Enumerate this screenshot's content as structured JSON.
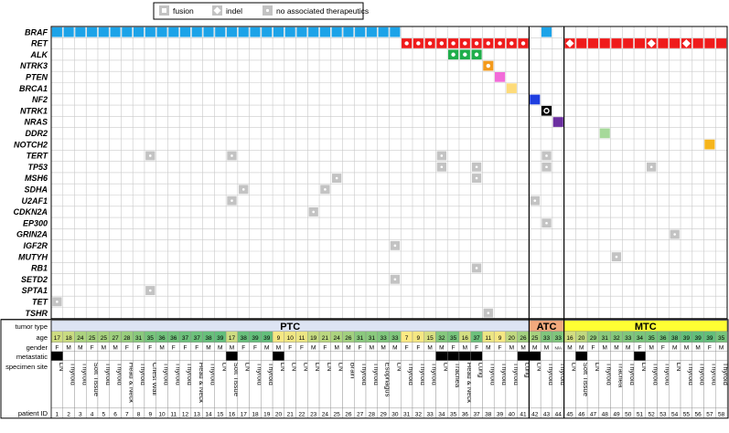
{
  "legend": {
    "items": [
      {
        "label": "fusion",
        "symbol": "square"
      },
      {
        "label": "indel",
        "symbol": "diamond"
      },
      {
        "label": "no associated therapeutics",
        "symbol": "gray-dot"
      }
    ]
  },
  "colors": {
    "BRAF": "#1ca3e8",
    "RET": "#ef1b1b",
    "ALK": "#1fae4b",
    "NTRK3": "#f39a1c",
    "PTEN": "#f26bd9",
    "BRCA1": "#fddb7a",
    "NF2": "#1f3fe0",
    "NRAS": "#6b2fa0",
    "DDR2": "#a6d99a",
    "NOTCH2": "#f6b51c",
    "gray": "#c3c3c3",
    "grid": "#c9c9c9",
    "PTC": "#dde4f3",
    "ATC": "#f2a97d",
    "MTC": "#ffff33"
  },
  "chart_data": {
    "type": "heatmap",
    "patient_ids": [
      1,
      2,
      3,
      4,
      5,
      6,
      7,
      8,
      9,
      10,
      11,
      12,
      13,
      14,
      15,
      16,
      17,
      18,
      19,
      20,
      21,
      22,
      23,
      24,
      25,
      26,
      27,
      28,
      29,
      30,
      31,
      32,
      33,
      34,
      35,
      36,
      37,
      38,
      39,
      40,
      41,
      42,
      43,
      44,
      45,
      46,
      47,
      48,
      49,
      50,
      51,
      52,
      53,
      54,
      55,
      56,
      57,
      58
    ],
    "genes": [
      "BRAF",
      "RET",
      "ALK",
      "NTRK3",
      "PTEN",
      "BRCA1",
      "NF2",
      "NTRK1",
      "NRAS",
      "DDR2",
      "NOTCH2",
      "TERT",
      "TP53",
      "MSH6",
      "SDHA",
      "U2AF1",
      "CDKN2A",
      "EP300",
      "GRIN2A",
      "IGF2R",
      "MUTYH",
      "RB1",
      "SETD2",
      "SPTA1",
      "TET",
      "TSHR"
    ],
    "tumor_type_label": "tumor type",
    "groups": [
      {
        "name": "PTC",
        "from": 1,
        "to": 41
      },
      {
        "name": "ATC",
        "from": 42,
        "to": 44
      },
      {
        "name": "MTC",
        "from": 45,
        "to": 58
      }
    ],
    "row_labels": {
      "age": "age",
      "gender": "gender",
      "metastatic": "metastatic",
      "site": "specimen site",
      "pid": "patient ID"
    },
    "age": [
      17,
      18,
      24,
      25,
      25,
      27,
      28,
      31,
      35,
      36,
      36,
      37,
      37,
      38,
      39,
      17,
      38,
      39,
      39,
      9,
      10,
      11,
      19,
      21,
      24,
      26,
      31,
      31,
      33,
      33,
      7,
      9,
      15,
      32,
      35,
      16,
      37,
      11,
      9,
      20,
      26,
      25,
      33,
      33,
      16,
      20,
      29,
      31,
      32,
      33,
      34,
      35,
      36,
      38,
      39,
      39,
      39,
      35
    ],
    "gender": [
      "F",
      "M",
      "M",
      "F",
      "M",
      "M",
      "F",
      "F",
      "F",
      "M",
      "F",
      "F",
      "F",
      "M",
      "M",
      "M",
      "F",
      "F",
      "M",
      "M",
      "F",
      "F",
      "M",
      "F",
      "M",
      "M",
      "F",
      "M",
      "M",
      "M",
      "F",
      "F",
      "M",
      "M",
      "F",
      "M",
      "F",
      "M",
      "F",
      "M",
      "M",
      "M",
      "M",
      "N/A",
      "M",
      "M",
      "F",
      "M",
      "M",
      "M",
      "F",
      "M",
      "F",
      "M",
      "M",
      "M",
      "F",
      "M"
    ],
    "metastatic": [
      1,
      0,
      0,
      0,
      0,
      0,
      0,
      0,
      0,
      0,
      0,
      0,
      0,
      0,
      0,
      1,
      0,
      0,
      0,
      1,
      0,
      0,
      0,
      0,
      0,
      0,
      0,
      0,
      0,
      0,
      0,
      0,
      0,
      1,
      1,
      1,
      1,
      0,
      0,
      0,
      1,
      1,
      0,
      0,
      0,
      1,
      0,
      0,
      0,
      0,
      1,
      0,
      0,
      0,
      0,
      0,
      0,
      0
    ],
    "site": [
      "LN",
      "Thyroid",
      "Thyroid",
      "Soft Tissue",
      "Thyroid",
      "Thyroid",
      "Head & Neck",
      "Thyroid",
      "Chest Wall",
      "Thyroid",
      "Thyroid",
      "Thyroid",
      "Head & Neck",
      "Thyroid",
      "LN",
      "Soft Tissue",
      "LN",
      "Thyroid",
      "Thyroid",
      "LN",
      "LN",
      "LN",
      "LN",
      "LN",
      "LN",
      "Brain",
      "Thyroid",
      "Thyroid",
      "Esophagus",
      "LN",
      "Thyroid",
      "Thyroid",
      "Thyroid",
      "LN",
      "Trachea",
      "Head & Neck",
      "Lung",
      "Thyroid",
      "Thyroid",
      "Thyroid",
      "Lung",
      "LN",
      "Thyroid",
      "Thyroid",
      "LN",
      "Soft Tissue",
      "LN",
      "Thyroid",
      "Trachea",
      "Thyroid",
      "LN",
      "Thyroid",
      "Thyroid",
      "LN",
      "Thyroid",
      "Thyroid",
      "Thyroid",
      "Thyroid"
    ],
    "alterations": {
      "BRAF": [
        {
          "from": 1,
          "to": 30,
          "kind": "solid"
        },
        {
          "from": 43,
          "to": 43,
          "kind": "solid"
        }
      ],
      "RET": [
        {
          "from": 31,
          "to": 41,
          "kind": "fusion"
        },
        {
          "from": 45,
          "to": 58,
          "kind": "solid"
        },
        {
          "from": 45,
          "to": 45,
          "kind": "indel"
        },
        {
          "from": 52,
          "to": 52,
          "kind": "indel"
        },
        {
          "from": 55,
          "to": 55,
          "kind": "indel"
        }
      ],
      "ALK": [
        {
          "from": 35,
          "to": 37,
          "kind": "fusion"
        }
      ],
      "NTRK3": [
        {
          "from": 38,
          "to": 38,
          "kind": "fusion"
        }
      ],
      "PTEN": [
        {
          "from": 39,
          "to": 39,
          "kind": "solid"
        }
      ],
      "BRCA1": [
        {
          "from": 40,
          "to": 40,
          "kind": "solid"
        }
      ],
      "NF2": [
        {
          "from": 42,
          "to": 42,
          "kind": "solid"
        }
      ],
      "NTRK1": [
        {
          "from": 43,
          "to": 43,
          "kind": "fusion-black"
        }
      ],
      "NRAS": [
        {
          "from": 44,
          "to": 44,
          "kind": "solid"
        }
      ],
      "DDR2": [
        {
          "from": 48,
          "to": 48,
          "kind": "solid"
        }
      ],
      "NOTCH2": [
        {
          "from": 57,
          "to": 57,
          "kind": "solid"
        }
      ],
      "TERT": [
        {
          "from": 9,
          "to": 9,
          "kind": "gray"
        },
        {
          "from": 16,
          "to": 16,
          "kind": "gray"
        },
        {
          "from": 34,
          "to": 34,
          "kind": "gray"
        },
        {
          "from": 43,
          "to": 43,
          "kind": "gray"
        }
      ],
      "TP53": [
        {
          "from": 34,
          "to": 34,
          "kind": "gray"
        },
        {
          "from": 37,
          "to": 37,
          "kind": "gray"
        },
        {
          "from": 43,
          "to": 43,
          "kind": "gray"
        },
        {
          "from": 52,
          "to": 52,
          "kind": "gray"
        }
      ],
      "MSH6": [
        {
          "from": 25,
          "to": 25,
          "kind": "gray"
        },
        {
          "from": 37,
          "to": 37,
          "kind": "gray"
        }
      ],
      "SDHA": [
        {
          "from": 17,
          "to": 17,
          "kind": "gray"
        },
        {
          "from": 24,
          "to": 24,
          "kind": "gray"
        }
      ],
      "U2AF1": [
        {
          "from": 16,
          "to": 16,
          "kind": "gray"
        },
        {
          "from": 42,
          "to": 42,
          "kind": "gray"
        }
      ],
      "CDKN2A": [
        {
          "from": 23,
          "to": 23,
          "kind": "gray"
        }
      ],
      "EP300": [
        {
          "from": 43,
          "to": 43,
          "kind": "gray"
        }
      ],
      "GRIN2A": [
        {
          "from": 54,
          "to": 54,
          "kind": "gray"
        }
      ],
      "IGF2R": [
        {
          "from": 30,
          "to": 30,
          "kind": "gray"
        }
      ],
      "MUTYH": [
        {
          "from": 49,
          "to": 49,
          "kind": "gray"
        }
      ],
      "RB1": [
        {
          "from": 37,
          "to": 37,
          "kind": "gray"
        }
      ],
      "SETD2": [
        {
          "from": 30,
          "to": 30,
          "kind": "gray"
        }
      ],
      "SPTA1": [
        {
          "from": 9,
          "to": 9,
          "kind": "gray"
        }
      ],
      "TET": [
        {
          "from": 1,
          "to": 1,
          "kind": "gray"
        }
      ],
      "TSHR": [
        {
          "from": 38,
          "to": 38,
          "kind": "gray"
        }
      ]
    }
  }
}
